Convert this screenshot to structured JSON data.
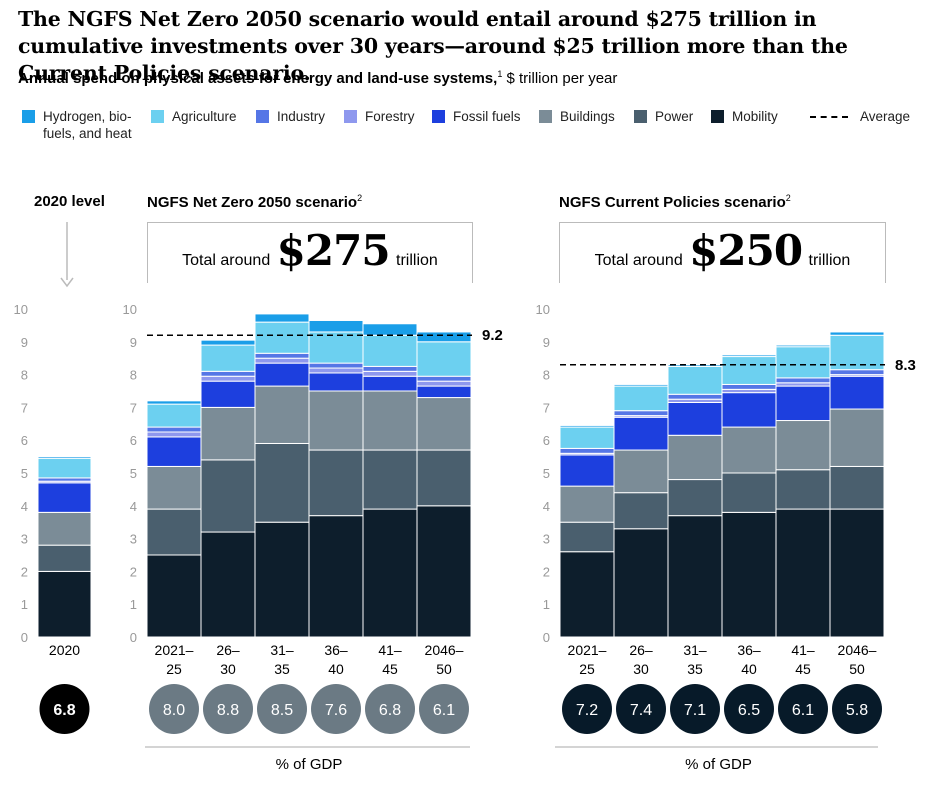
{
  "title": "The NGFS Net Zero 2050 scenario would entail around $275 trillion in cumulative investments over 30 years—around $25 trillion more than the Current Policies scenario.",
  "subtitle": {
    "bold": "Annual spend on physical assets for energy and land-use systems,",
    "footnote": "1",
    "rest": " $ trillion per year"
  },
  "legend": [
    {
      "name": "Hydrogen, bio-fuels, and heat",
      "line1": "Hydrogen, bio-",
      "line2": "fuels, and heat",
      "color": "#1a9ee8"
    },
    {
      "name": "Agriculture",
      "line1": "Agriculture",
      "line2": "",
      "color": "#6cd0f0"
    },
    {
      "name": "Industry",
      "line1": "Industry",
      "line2": "",
      "color": "#5576e6"
    },
    {
      "name": "Forestry",
      "line1": "Forestry",
      "line2": "",
      "color": "#8e98ee"
    },
    {
      "name": "Fossil fuels",
      "line1": "Fossil fuels",
      "line2": "",
      "color": "#1d3fde"
    },
    {
      "name": "Buildings",
      "line1": "Buildings",
      "line2": "",
      "color": "#7b8c97"
    },
    {
      "name": "Power",
      "line1": "Power",
      "line2": "",
      "color": "#4a5f6e"
    },
    {
      "name": "Mobility",
      "line1": "Mobility",
      "line2": "",
      "color": "#0d1e2c"
    }
  ],
  "legend_average": "Average",
  "panels": {
    "level2020": {
      "title": "2020 level"
    },
    "netzero": {
      "title": "NGFS Net Zero 2050 scenario",
      "footnote": "2",
      "total_prefix": "Total around",
      "total_value": "$275",
      "total_suffix": "trillion",
      "gdp_label": "% of GDP"
    },
    "current": {
      "title": "NGFS Current Policies scenario",
      "footnote": "2",
      "total_prefix": "Total around",
      "total_value": "$250",
      "total_suffix": "trillion",
      "gdp_label": "% of GDP"
    }
  },
  "chart_data": [
    {
      "type": "bar",
      "stacked": true,
      "title": "2020 level",
      "ylim": [
        0,
        10
      ],
      "yticks": [
        "0",
        "1",
        "2",
        "3",
        "4",
        "5",
        "6",
        "7",
        "8",
        "9",
        "10"
      ],
      "categories": [
        [
          "2020"
        ]
      ],
      "gdp_percent": [
        "6.8"
      ],
      "series": [
        {
          "name": "Mobility",
          "values": [
            2.0
          ]
        },
        {
          "name": "Power",
          "values": [
            0.8
          ]
        },
        {
          "name": "Buildings",
          "values": [
            1.0
          ]
        },
        {
          "name": "Fossil fuels",
          "values": [
            0.9
          ]
        },
        {
          "name": "Forestry",
          "values": [
            0.05
          ]
        },
        {
          "name": "Industry",
          "values": [
            0.1
          ]
        },
        {
          "name": "Agriculture",
          "values": [
            0.6
          ]
        },
        {
          "name": "Hydrogen, bio-fuels, and heat",
          "values": [
            0.05
          ]
        }
      ]
    },
    {
      "type": "bar",
      "stacked": true,
      "title": "NGFS Net Zero 2050 scenario",
      "ylim": [
        0,
        10
      ],
      "yticks": [
        "0",
        "1",
        "2",
        "3",
        "4",
        "5",
        "6",
        "7",
        "8",
        "9",
        "10"
      ],
      "categories": [
        [
          "2021–",
          "25"
        ],
        [
          "26–",
          "30"
        ],
        [
          "31–",
          "35"
        ],
        [
          "36–",
          "40"
        ],
        [
          "41–",
          "45"
        ],
        [
          "2046–",
          "50"
        ]
      ],
      "average": 9.2,
      "average_label": "9.2",
      "gdp_percent": [
        "8.0",
        "8.8",
        "8.5",
        "7.6",
        "6.8",
        "6.1"
      ],
      "series": [
        {
          "name": "Mobility",
          "values": [
            2.5,
            3.2,
            3.5,
            3.7,
            3.9,
            4.0
          ]
        },
        {
          "name": "Power",
          "values": [
            1.4,
            2.2,
            2.4,
            2.0,
            1.8,
            1.7
          ]
        },
        {
          "name": "Buildings",
          "values": [
            1.3,
            1.6,
            1.75,
            1.8,
            1.8,
            1.6
          ]
        },
        {
          "name": "Fossil fuels",
          "values": [
            0.9,
            0.8,
            0.7,
            0.55,
            0.45,
            0.35
          ]
        },
        {
          "name": "Forestry",
          "values": [
            0.15,
            0.15,
            0.15,
            0.15,
            0.15,
            0.15
          ]
        },
        {
          "name": "Industry",
          "values": [
            0.15,
            0.15,
            0.15,
            0.15,
            0.15,
            0.15
          ]
        },
        {
          "name": "Agriculture",
          "values": [
            0.7,
            0.8,
            0.95,
            0.95,
            0.95,
            1.05
          ]
        },
        {
          "name": "Hydrogen, bio-fuels, and heat",
          "values": [
            0.1,
            0.15,
            0.25,
            0.35,
            0.35,
            0.3
          ]
        }
      ]
    },
    {
      "type": "bar",
      "stacked": true,
      "title": "NGFS Current Policies scenario",
      "ylim": [
        0,
        10
      ],
      "yticks": [
        "0",
        "1",
        "2",
        "3",
        "4",
        "5",
        "6",
        "7",
        "8",
        "9",
        "10"
      ],
      "categories": [
        [
          "2021–",
          "25"
        ],
        [
          "26–",
          "30"
        ],
        [
          "31–",
          "35"
        ],
        [
          "36–",
          "40"
        ],
        [
          "41–",
          "45"
        ],
        [
          "2046–",
          "50"
        ]
      ],
      "average": 8.3,
      "average_label": "8.3",
      "gdp_percent": [
        "7.2",
        "7.4",
        "7.1",
        "6.5",
        "6.1",
        "5.8"
      ],
      "series": [
        {
          "name": "Mobility",
          "values": [
            2.6,
            3.3,
            3.7,
            3.8,
            3.9,
            3.9
          ]
        },
        {
          "name": "Power",
          "values": [
            0.9,
            1.1,
            1.1,
            1.2,
            1.2,
            1.3
          ]
        },
        {
          "name": "Buildings",
          "values": [
            1.1,
            1.3,
            1.35,
            1.4,
            1.5,
            1.75
          ]
        },
        {
          "name": "Fossil fuels",
          "values": [
            0.95,
            1.0,
            1.0,
            1.05,
            1.05,
            1.0
          ]
        },
        {
          "name": "Forestry",
          "values": [
            0.05,
            0.05,
            0.1,
            0.1,
            0.1,
            0.05
          ]
        },
        {
          "name": "Industry",
          "values": [
            0.15,
            0.15,
            0.15,
            0.15,
            0.15,
            0.15
          ]
        },
        {
          "name": "Agriculture",
          "values": [
            0.65,
            0.75,
            0.85,
            0.85,
            0.95,
            1.05
          ]
        },
        {
          "name": "Hydrogen, bio-fuels, and heat",
          "values": [
            0.05,
            0.05,
            0.05,
            0.05,
            0.05,
            0.1
          ]
        }
      ]
    }
  ]
}
